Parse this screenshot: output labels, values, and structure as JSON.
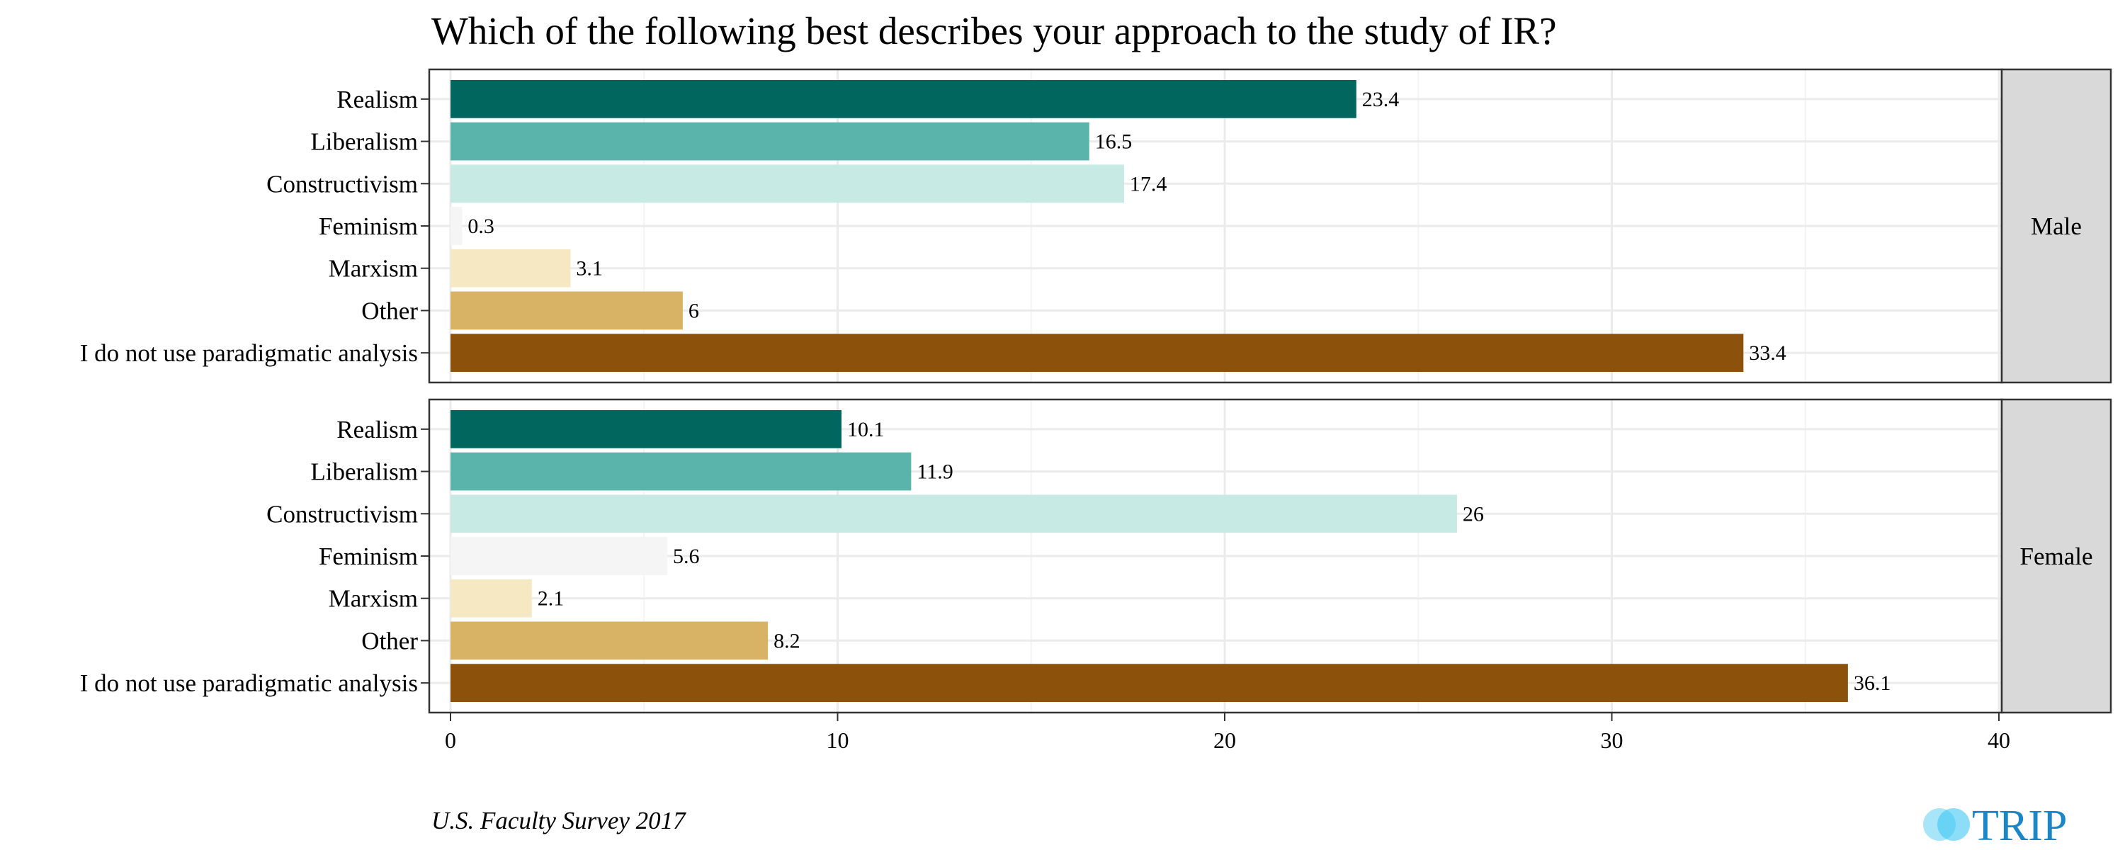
{
  "chart_data": {
    "type": "bar",
    "orientation": "horizontal",
    "title": "Which of the following best describes your approach to the study of IR?",
    "categories": [
      "Realism",
      "Liberalism",
      "Constructivism",
      "Feminism",
      "Marxism",
      "Other",
      "I do not use paradigmatic analysis"
    ],
    "colors": [
      "#01665e",
      "#5ab4ac",
      "#c7eae5",
      "#f5f5f5",
      "#f6e8c3",
      "#d8b365",
      "#8c510a"
    ],
    "panels": [
      {
        "name": "Male",
        "values": [
          23.4,
          16.5,
          17.4,
          0.3,
          3.1,
          6,
          33.4
        ],
        "value_labels": [
          "23.4",
          "16.5",
          "17.4",
          "0.3",
          "3.1",
          "6",
          "33.4"
        ]
      },
      {
        "name": "Female",
        "values": [
          10.1,
          11.9,
          26,
          5.6,
          2.1,
          8.2,
          36.1
        ],
        "value_labels": [
          "10.1",
          "11.9",
          "26",
          "5.6",
          "2.1",
          "8.2",
          "36.1"
        ]
      }
    ],
    "xlim": [
      0,
      40
    ],
    "xticks": [
      0,
      10,
      20,
      30,
      40
    ],
    "xtick_labels": [
      "0",
      "10",
      "20",
      "30",
      "40"
    ],
    "grid": true,
    "legend": "none"
  },
  "caption": "U.S. Faculty Survey 2017",
  "logo_text": "TRIP"
}
